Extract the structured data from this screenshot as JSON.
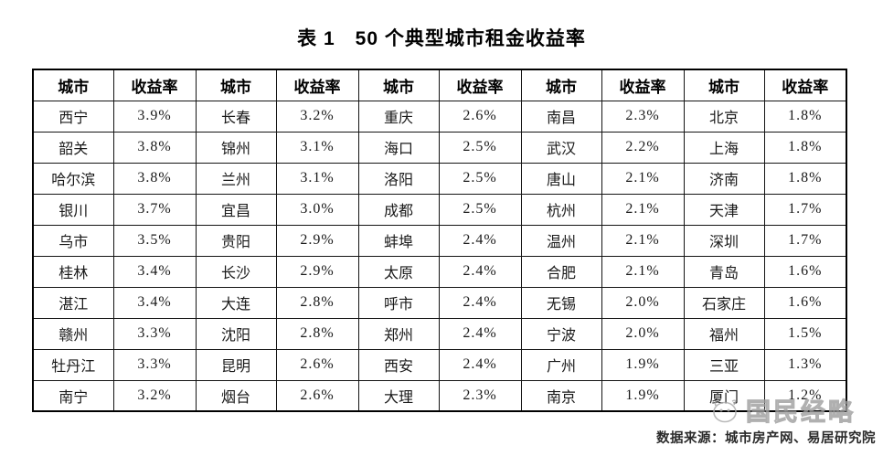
{
  "title": "表 1　50 个典型城市租金收益率",
  "table": {
    "headers": [
      "城市",
      "收益率",
      "城市",
      "收益率",
      "城市",
      "收益率",
      "城市",
      "收益率",
      "城市",
      "收益率"
    ],
    "rows": [
      [
        "西宁",
        "3.9%",
        "长春",
        "3.2%",
        "重庆",
        "2.6%",
        "南昌",
        "2.3%",
        "北京",
        "1.8%"
      ],
      [
        "韶关",
        "3.8%",
        "锦州",
        "3.1%",
        "海口",
        "2.5%",
        "武汉",
        "2.2%",
        "上海",
        "1.8%"
      ],
      [
        "哈尔滨",
        "3.8%",
        "兰州",
        "3.1%",
        "洛阳",
        "2.5%",
        "唐山",
        "2.1%",
        "济南",
        "1.8%"
      ],
      [
        "银川",
        "3.7%",
        "宜昌",
        "3.0%",
        "成都",
        "2.5%",
        "杭州",
        "2.1%",
        "天津",
        "1.7%"
      ],
      [
        "乌市",
        "3.5%",
        "贵阳",
        "2.9%",
        "蚌埠",
        "2.4%",
        "温州",
        "2.1%",
        "深圳",
        "1.7%"
      ],
      [
        "桂林",
        "3.4%",
        "长沙",
        "2.9%",
        "太原",
        "2.4%",
        "合肥",
        "2.1%",
        "青岛",
        "1.6%"
      ],
      [
        "湛江",
        "3.4%",
        "大连",
        "2.8%",
        "呼市",
        "2.4%",
        "无锡",
        "2.0%",
        "石家庄",
        "1.6%"
      ],
      [
        "赣州",
        "3.3%",
        "沈阳",
        "2.8%",
        "郑州",
        "2.4%",
        "宁波",
        "2.0%",
        "福州",
        "1.5%"
      ],
      [
        "牡丹江",
        "3.3%",
        "昆明",
        "2.6%",
        "西安",
        "2.4%",
        "广州",
        "1.9%",
        "三亚",
        "1.3%"
      ],
      [
        "南宁",
        "3.2%",
        "烟台",
        "2.6%",
        "大理",
        "2.3%",
        "南京",
        "1.9%",
        "厦门",
        "1.2%"
      ]
    ]
  },
  "watermark": {
    "text": "国民经略",
    "logo": "cartoon-face-logo"
  },
  "source_caption": "数据来源：城市房产网、易居研究院",
  "colors": {
    "border": "#000000",
    "text": "#1a1a1a",
    "watermark": "#9d9d9d",
    "background": "#ffffff"
  }
}
